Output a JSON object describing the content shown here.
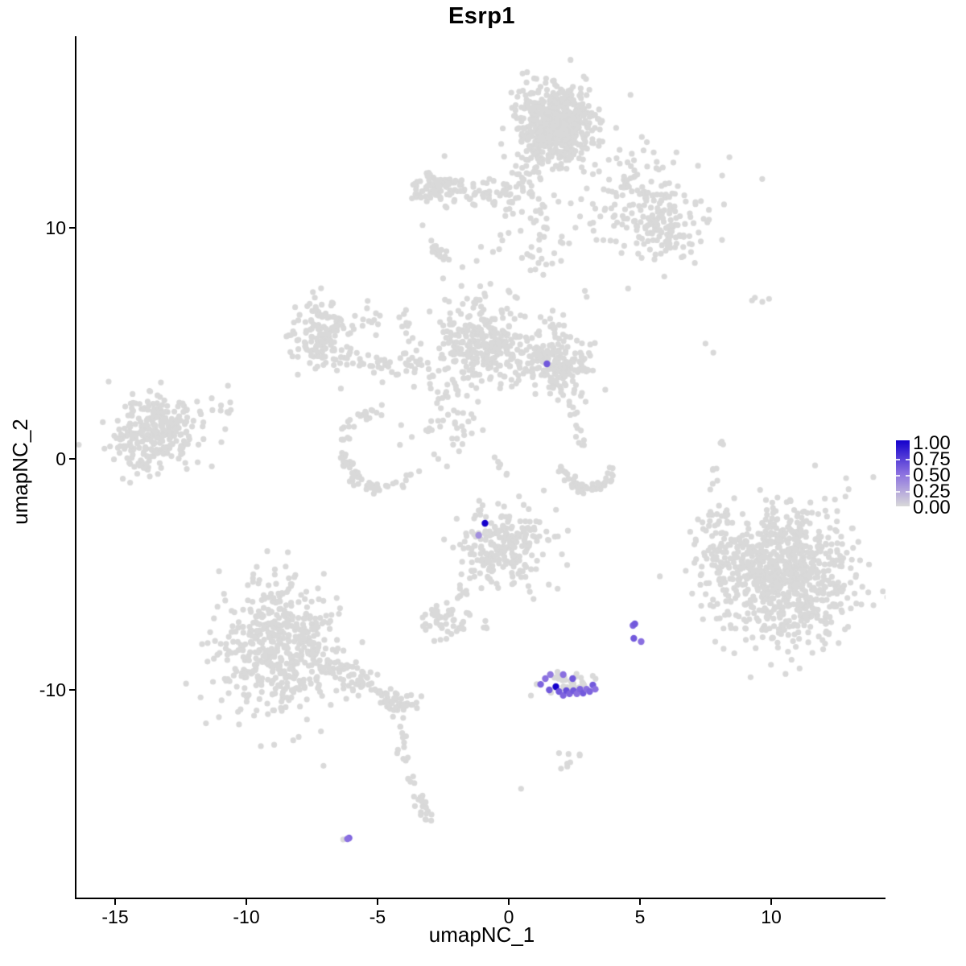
{
  "chart_data": {
    "type": "scatter",
    "title": "Esrp1",
    "xlabel": "umapNC_1",
    "ylabel": "umapNC_2",
    "x_tick_labels": [
      "-15",
      "-10",
      "-5",
      "0",
      "5",
      "10"
    ],
    "x_tick_values": [
      -15,
      -10,
      -5,
      0,
      5,
      10
    ],
    "y_tick_labels": [
      "10",
      "0",
      "-10"
    ],
    "y_tick_values": [
      10,
      0,
      -10
    ],
    "xlim": [
      -16.5,
      14.4
    ],
    "ylim": [
      -19.0,
      18.3
    ],
    "grid": false,
    "legend": {
      "position": "right",
      "labels": [
        "1.00",
        "0.75",
        "0.50",
        "0.25",
        "0.00"
      ],
      "values": [
        1.0,
        0.75,
        0.5,
        0.25,
        0.0
      ]
    },
    "colors": {
      "low": "#D9D9D9",
      "mid": "#8A6FE0",
      "high": "#1400CC",
      "background": "#FFFFFF",
      "axis": "#000000"
    },
    "point_radius": 3.6,
    "highlight_radius": 4.2,
    "seed": 20240817,
    "clusters": [
      {
        "name": "top-main",
        "type": "blob",
        "x": 1.78,
        "y": 14.46,
        "sx": 0.72,
        "sy": 0.82,
        "n": 620
      },
      {
        "name": "top-neck",
        "type": "line",
        "x1": 0.86,
        "y1": 12.9,
        "x2": 0.3,
        "y2": 10.95,
        "jitter": 0.22,
        "n": 25
      },
      {
        "name": "top-bridge",
        "type": "blob",
        "x": 1.1,
        "y": 9.76,
        "sx": 0.6,
        "sy": 1.0,
        "n": 55
      },
      {
        "name": "top-arm",
        "type": "line",
        "x1": -3.28,
        "y1": 11.85,
        "x2": 0.0,
        "y2": 11.55,
        "jitter": 0.27,
        "n": 80
      },
      {
        "name": "top-arm-knot",
        "type": "blob",
        "x": -2.9,
        "y": 11.7,
        "sx": 0.45,
        "sy": 0.5,
        "n": 45
      },
      {
        "name": "top-arm-streak",
        "type": "line",
        "x1": -3.13,
        "y1": 9.4,
        "x2": -2.36,
        "y2": 8.64,
        "jitter": 0.1,
        "n": 18
      },
      {
        "name": "top-right-scatter",
        "type": "blob",
        "x": 4.85,
        "y": 11.15,
        "sx": 1.05,
        "sy": 1.25,
        "n": 150
      },
      {
        "name": "top-right-knot",
        "type": "blob",
        "x": 5.92,
        "y": 9.86,
        "sx": 0.55,
        "sy": 0.6,
        "n": 70
      },
      {
        "name": "top-right-fringe",
        "type": "blob",
        "x": 6.9,
        "y": 10.6,
        "sx": 0.8,
        "sy": 0.9,
        "n": 22
      },
      {
        "name": "mid-left-blob",
        "type": "blob",
        "x": -7.12,
        "y": 5.4,
        "sx": 0.6,
        "sy": 0.75,
        "n": 150
      },
      {
        "name": "mid-left-arm",
        "type": "line",
        "x1": -6.0,
        "y1": 4.15,
        "x2": -3.2,
        "y2": 4.0,
        "jitter": 0.27,
        "n": 48
      },
      {
        "name": "mid-left-knot",
        "type": "blob",
        "x": -5.28,
        "y": 5.99,
        "sx": 0.35,
        "sy": 0.3,
        "n": 10
      },
      {
        "name": "mid-chain",
        "type": "line",
        "x1": -4.2,
        "y1": 7.1,
        "x2": -3.74,
        "y2": 4.9,
        "jitter": 0.12,
        "n": 10
      },
      {
        "name": "mid-center",
        "type": "blob",
        "x": -0.98,
        "y": 5.05,
        "sx": 0.9,
        "sy": 1.0,
        "n": 290
      },
      {
        "name": "mid-right-lobe",
        "type": "blob",
        "x": 1.78,
        "y": 4.18,
        "sx": 0.7,
        "sy": 0.72,
        "n": 210
      },
      {
        "name": "ring-arc",
        "type": "arc",
        "x": -4.8,
        "y": 0.35,
        "rx": 1.47,
        "ry": 1.67,
        "a1": 100,
        "a2": 330,
        "jitter": 0.16,
        "n": 75
      },
      {
        "name": "ring-fill",
        "type": "blob",
        "x": -2.36,
        "y": 1.74,
        "sx": 0.65,
        "sy": 1.1,
        "n": 55
      },
      {
        "name": "smile-arc",
        "type": "arc",
        "x": 3.0,
        "y": -0.17,
        "rx": 0.98,
        "ry": 1.11,
        "a1": 190,
        "a2": 345,
        "jitter": 0.13,
        "n": 55
      },
      {
        "name": "desc-chain",
        "type": "line",
        "x1": 2.4,
        "y1": 2.8,
        "x2": 2.72,
        "y2": 0.5,
        "jitter": 0.12,
        "n": 14
      },
      {
        "name": "mid-lower-chain",
        "type": "line",
        "x1": -0.6,
        "y1": 0.0,
        "x2": 0.2,
        "y2": -0.85,
        "jitter": 0.1,
        "n": 6
      },
      {
        "name": "left-cluster",
        "type": "blob",
        "x": -13.47,
        "y": 1.05,
        "sx": 0.85,
        "sy": 0.8,
        "n": 270
      },
      {
        "name": "left-cluster-fringe",
        "type": "blob",
        "x": -11.2,
        "y": 2.0,
        "sx": 0.4,
        "sy": 0.45,
        "n": 12
      },
      {
        "name": "left-edge-dot",
        "type": "blob",
        "x": -15.5,
        "y": 1.57,
        "sx": 0.05,
        "sy": 0.05,
        "n": 1
      },
      {
        "name": "cl-bottom-cluster",
        "type": "blob",
        "x": -0.21,
        "y": -3.83,
        "sx": 0.82,
        "sy": 0.8,
        "n": 230
      },
      {
        "name": "cl-bottom-trail",
        "type": "line",
        "x1": -1.23,
        "y1": -4.74,
        "x2": -1.9,
        "y2": -6.1,
        "jitter": 0.1,
        "n": 9
      },
      {
        "name": "small-clump",
        "type": "blob",
        "x": -2.36,
        "y": -7.04,
        "sx": 0.45,
        "sy": 0.4,
        "n": 50
      },
      {
        "name": "tiny-clump",
        "type": "blob",
        "x": -0.85,
        "y": -7.5,
        "sx": 0.12,
        "sy": 0.2,
        "n": 3
      },
      {
        "name": "bottom-left-cluster",
        "type": "blob",
        "x": -8.8,
        "y": -8.19,
        "sx": 1.12,
        "sy": 1.42,
        "n": 500
      },
      {
        "name": "bottom-left-arm",
        "type": "line",
        "x1": -7.1,
        "y1": -8.7,
        "x2": -3.74,
        "y2": -10.8,
        "jitter": 0.3,
        "n": 110
      },
      {
        "name": "tail-vertical",
        "type": "line",
        "x1": -4.14,
        "y1": -11.3,
        "x2": -3.9,
        "y2": -13.6,
        "jitter": 0.12,
        "n": 13
      },
      {
        "name": "tail-streak",
        "type": "line",
        "x1": -3.68,
        "y1": -13.76,
        "x2": -3.1,
        "y2": -15.7,
        "jitter": 0.12,
        "n": 24
      },
      {
        "name": "right-big-cluster",
        "type": "blob",
        "x": 10.43,
        "y": -4.95,
        "sx": 1.32,
        "sy": 1.42,
        "n": 850
      },
      {
        "name": "right-big-west-arm",
        "type": "blob",
        "x": 8.0,
        "y": -3.83,
        "sx": 0.4,
        "sy": 0.9,
        "n": 55
      },
      {
        "name": "expr-cluster-gray",
        "type": "blob",
        "x": 2.24,
        "y": -9.76,
        "sx": 0.5,
        "sy": 0.3,
        "n": 38
      },
      {
        "name": "below-clump",
        "type": "blob",
        "x": 2.33,
        "y": -12.96,
        "sx": 0.25,
        "sy": 0.26,
        "n": 8
      },
      {
        "name": "lone-dot-1",
        "type": "blob",
        "x": 0.49,
        "y": -14.29,
        "sx": 0.02,
        "sy": 0.02,
        "n": 1
      },
      {
        "name": "lone-dot-2",
        "type": "blob",
        "x": -1.04,
        "y": 9.2,
        "sx": 0.02,
        "sy": 0.02,
        "n": 1
      },
      {
        "name": "right-sparse-1",
        "type": "blob",
        "x": 9.36,
        "y": 6.86,
        "sx": 0.12,
        "sy": 0.08,
        "n": 3
      },
      {
        "name": "right-sparse-2",
        "type": "blob",
        "x": 9.9,
        "y": 6.93,
        "sx": 0.02,
        "sy": 0.02,
        "n": 1
      },
      {
        "name": "right-sparse-3",
        "type": "blob",
        "x": 7.52,
        "y": 5.0,
        "sx": 0.02,
        "sy": 0.02,
        "n": 1
      },
      {
        "name": "right-sparse-4",
        "type": "blob",
        "x": 7.79,
        "y": 4.6,
        "sx": 0.02,
        "sy": 0.02,
        "n": 1
      },
      {
        "name": "right-sparse-5",
        "type": "blob",
        "x": 8.07,
        "y": 0.77,
        "sx": 0.1,
        "sy": 0.1,
        "n": 3
      },
      {
        "name": "right-sparse-6",
        "type": "blob",
        "x": 7.85,
        "y": -0.6,
        "sx": 0.08,
        "sy": 0.35,
        "n": 5
      },
      {
        "name": "pair-dot-gray",
        "type": "blob",
        "x": -6.32,
        "y": -16.48,
        "sx": 0.02,
        "sy": 0.02,
        "n": 1
      }
    ],
    "highlights": [
      {
        "x": 1.47,
        "y": 4.11,
        "v": 0.6
      },
      {
        "x": -0.89,
        "y": -2.79,
        "v": 1.0
      },
      {
        "x": -1.13,
        "y": -3.31,
        "v": 0.35
      },
      {
        "x": 1.23,
        "y": -9.76,
        "v": 0.55
      },
      {
        "x": 1.41,
        "y": -9.51,
        "v": 0.5
      },
      {
        "x": 1.56,
        "y": -10.0,
        "v": 0.6
      },
      {
        "x": 1.81,
        "y": -9.86,
        "v": 1.0
      },
      {
        "x": 1.93,
        "y": -10.07,
        "v": 0.6
      },
      {
        "x": 2.09,
        "y": -10.24,
        "v": 0.55
      },
      {
        "x": 2.21,
        "y": -10.03,
        "v": 0.65
      },
      {
        "x": 2.33,
        "y": -10.17,
        "v": 0.55
      },
      {
        "x": 2.48,
        "y": -10.03,
        "v": 0.6
      },
      {
        "x": 2.61,
        "y": -10.17,
        "v": 0.5
      },
      {
        "x": 2.73,
        "y": -9.97,
        "v": 0.55
      },
      {
        "x": 2.85,
        "y": -10.14,
        "v": 0.6
      },
      {
        "x": 2.98,
        "y": -9.97,
        "v": 0.5
      },
      {
        "x": 3.1,
        "y": -10.07,
        "v": 0.55
      },
      {
        "x": 3.22,
        "y": -9.79,
        "v": 0.6
      },
      {
        "x": 3.31,
        "y": -9.97,
        "v": 0.5
      },
      {
        "x": 2.45,
        "y": -9.51,
        "v": 0.6
      },
      {
        "x": 1.6,
        "y": -9.34,
        "v": 0.45
      },
      {
        "x": 2.09,
        "y": -9.34,
        "v": 0.5
      },
      {
        "x": 4.75,
        "y": -7.21,
        "v": 0.55
      },
      {
        "x": 4.82,
        "y": -7.14,
        "v": 0.6
      },
      {
        "x": 4.78,
        "y": -7.77,
        "v": 0.6
      },
      {
        "x": 5.06,
        "y": -7.91,
        "v": 0.5
      },
      {
        "x": -6.07,
        "y": -16.41,
        "v": 0.55
      },
      {
        "x": -6.13,
        "y": -16.45,
        "v": 0.5
      }
    ]
  }
}
